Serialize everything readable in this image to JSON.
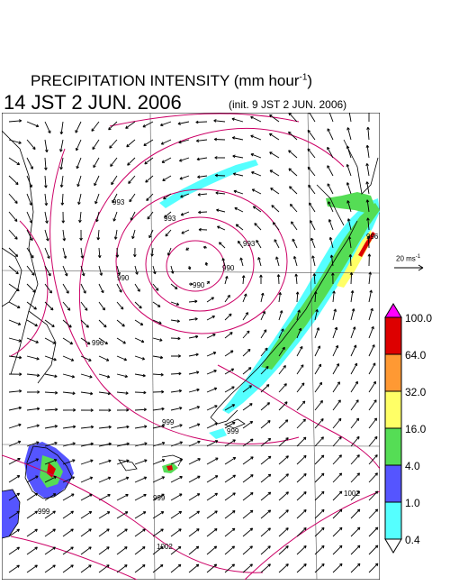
{
  "title": {
    "text": "PRECIPITATION INTENSITY (mm hour",
    "unit_exp": "-1",
    "close": ")"
  },
  "timestamp": "14 JST 2 JUN. 2006",
  "init": "(init. 9 JST 2 JUN. 2006)",
  "scale": {
    "text": "20 ms",
    "exp": "-1"
  },
  "colorbar": {
    "labels": [
      "100.0",
      "64.0",
      "32.0",
      "16.0",
      "4.0",
      "1.0",
      "0.4"
    ],
    "colors": [
      "#ff00ff",
      "#dd0000",
      "#ff9933",
      "#ffff66",
      "#55dd55",
      "#5555ff",
      "#55ffff"
    ]
  },
  "isobars": [
    "993",
    "993",
    "990",
    "990",
    "990",
    "993",
    "996",
    "996",
    "999",
    "999",
    "999",
    "1002",
    "1002",
    "999"
  ],
  "colors": {
    "isobar": "#cc0066",
    "coast": "#000000"
  }
}
